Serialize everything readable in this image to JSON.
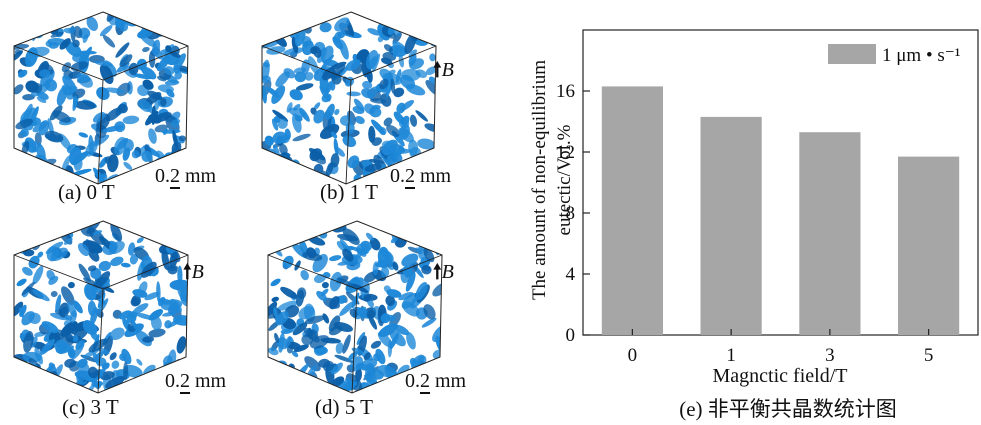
{
  "panels": [
    {
      "caption": "(a) 0 T",
      "scale": "0.2 mm",
      "show_field": false
    },
    {
      "caption": "(b) 1 T",
      "scale": "0.2 mm",
      "show_field": true
    },
    {
      "caption": "(c) 3 T",
      "scale": "0.2 mm",
      "show_field": true
    },
    {
      "caption": "(d) 5 T",
      "scale": "0.2 mm",
      "show_field": true
    }
  ],
  "field_label": "B",
  "chart_caption": "(e) 非平衡共晶数统计图",
  "colors": {
    "bar": "#a6a6a6",
    "eutectic": "#1e88d8",
    "eutectic_dark": "#0b5fa8"
  },
  "chart_data": {
    "type": "bar",
    "categories": [
      "0",
      "1",
      "3",
      "5"
    ],
    "values": [
      16.3,
      14.3,
      13.3,
      11.7
    ],
    "xlabel": "Magnctic field/T",
    "ylabel_line1": "The amount of non-equilibrium",
    "ylabel_line2": "eutectic/Vol.%",
    "ylim": [
      0,
      20
    ],
    "yticks": [
      "0",
      "4",
      "8",
      "12",
      "16"
    ],
    "legend": "1 μm • s⁻¹",
    "legend_position": "top-right"
  }
}
